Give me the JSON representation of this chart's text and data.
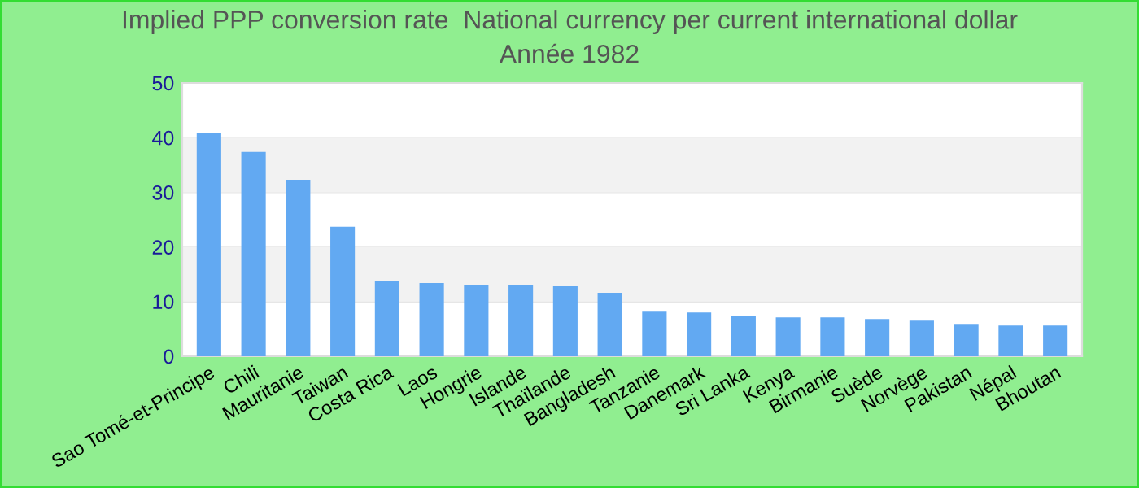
{
  "chart_data": {
    "type": "bar",
    "title": "Implied PPP conversion rate  National currency per current international dollar",
    "subtitle": "Année 1982",
    "categories": [
      "Sao Tomé-et-Principe",
      "Chili",
      "Mauritanie",
      "Taiwan",
      "Costa Rica",
      "Laos",
      "Hongrie",
      "Islande",
      "Thaïlande",
      "Bangladesh",
      "Tanzanie",
      "Danemark",
      "Sri Lanka",
      "Kenya",
      "Birmanie",
      "Suède",
      "Norvège",
      "Pakistan",
      "Népal",
      "Bhoutan"
    ],
    "values": [
      40.9,
      37.4,
      32.3,
      23.7,
      13.7,
      13.4,
      13.1,
      13.1,
      12.8,
      11.6,
      8.3,
      8.0,
      7.4,
      7.1,
      7.1,
      6.8,
      6.5,
      5.9,
      5.6,
      5.6
    ],
    "color": "#62a9f2",
    "ylim": [
      0,
      50
    ],
    "yticks": [
      0,
      10,
      20,
      30,
      40,
      50
    ],
    "grid": "y"
  }
}
